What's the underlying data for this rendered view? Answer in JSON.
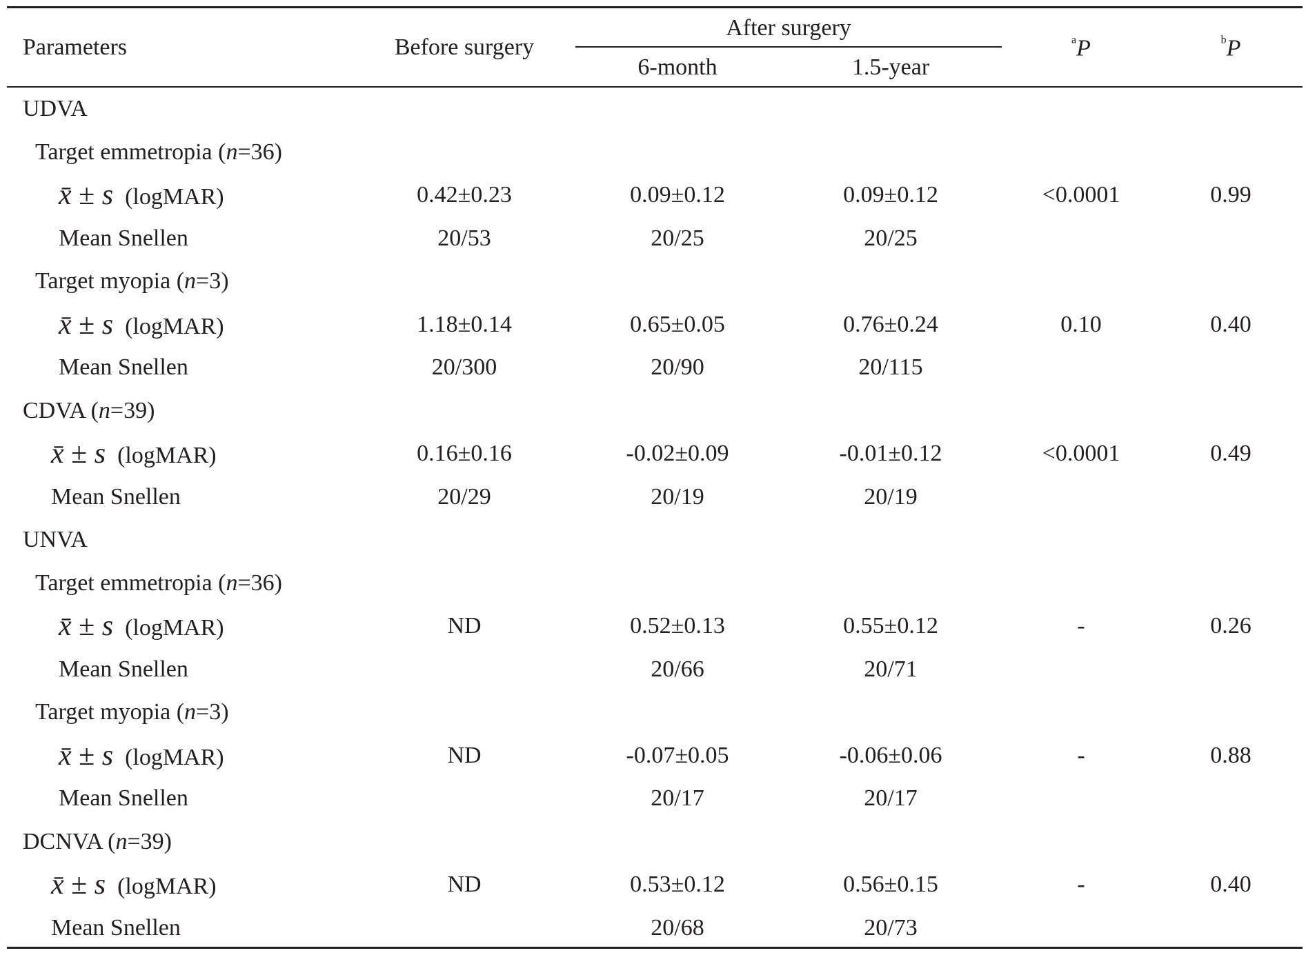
{
  "header": {
    "parameters": "Parameters",
    "before": "Before surgery",
    "after": "After surgery",
    "month6": "6-month",
    "year15": "1.5-year",
    "p_a": {
      "sup": "a",
      "text": "P"
    },
    "p_b": {
      "sup": "b",
      "text": "P"
    }
  },
  "sections": [
    {
      "label": [
        {
          "text": "UDVA"
        }
      ],
      "rows": [
        {
          "label": [
            {
              "text": "Target emmetropia ("
            },
            {
              "text": "n",
              "italic": true
            },
            {
              "text": "=36)"
            }
          ]
        },
        {
          "label": [
            {
              "text": "x̄",
              "italic": true
            },
            {
              "text": " ± "
            },
            {
              "text": "s",
              "italic": true
            },
            {
              "text": "  (logMAR)"
            }
          ],
          "cells": [
            "0.42±0.23",
            "0.09±0.12",
            "0.09±0.12",
            "<0.0001",
            "0.99"
          ]
        },
        {
          "label": [
            {
              "text": "Mean Snellen"
            }
          ],
          "cells": [
            "20/53",
            "20/25",
            "20/25",
            null,
            null
          ]
        },
        {
          "label": [
            {
              "text": "Target myopia ("
            },
            {
              "text": "n",
              "italic": true
            },
            {
              "text": "=3)"
            }
          ]
        },
        {
          "label": [
            {
              "text": "x̄",
              "italic": true
            },
            {
              "text": " ± "
            },
            {
              "text": "s",
              "italic": true
            },
            {
              "text": "  (logMAR)"
            }
          ],
          "cells": [
            "1.18±0.14",
            "0.65±0.05",
            "0.76±0.24",
            "0.10",
            "0.40"
          ]
        },
        {
          "label": [
            {
              "text": "Mean Snellen"
            }
          ],
          "cells": [
            "20/300",
            "20/90",
            "20/115",
            null,
            null
          ]
        }
      ]
    },
    {
      "label": [
        {
          "text": "CDVA ("
        },
        {
          "text": "n",
          "italic": true
        },
        {
          "text": "=39)"
        }
      ],
      "rows": [
        {
          "label": [
            {
              "text": "x̄",
              "italic": true
            },
            {
              "text": " ± "
            },
            {
              "text": "s",
              "italic": true
            },
            {
              "text": "  (logMAR)"
            }
          ],
          "cells": [
            "0.16±0.16",
            "-0.02±0.09",
            "-0.01±0.12",
            "<0.0001",
            "0.49"
          ]
        },
        {
          "label": [
            {
              "text": "Mean Snellen"
            }
          ],
          "cells": [
            "20/29",
            "20/19",
            "20/19",
            null,
            null
          ]
        }
      ]
    },
    {
      "label": [
        {
          "text": "UNVA"
        }
      ],
      "rows": [
        {
          "label": [
            {
              "text": "Target emmetropia ("
            },
            {
              "text": "n",
              "italic": true
            },
            {
              "text": "=36)"
            }
          ]
        },
        {
          "label": [
            {
              "text": "x̄",
              "italic": true
            },
            {
              "text": " ± "
            },
            {
              "text": "s",
              "italic": true
            },
            {
              "text": "  (logMAR)"
            }
          ],
          "cells": [
            "ND",
            "0.52±0.13",
            "0.55±0.12",
            "-",
            "0.26"
          ]
        },
        {
          "label": [
            {
              "text": "Mean Snellen"
            }
          ],
          "cells": [
            null,
            "20/66",
            "20/71",
            null,
            null
          ]
        },
        {
          "label": [
            {
              "text": "Target myopia ("
            },
            {
              "text": "n",
              "italic": true
            },
            {
              "text": "=3)"
            }
          ]
        },
        {
          "label": [
            {
              "text": "x̄",
              "italic": true
            },
            {
              "text": " ± "
            },
            {
              "text": "s",
              "italic": true
            },
            {
              "text": "  (logMAR)"
            }
          ],
          "cells": [
            "ND",
            "-0.07±0.05",
            "-0.06±0.06",
            "-",
            "0.88"
          ]
        },
        {
          "label": [
            {
              "text": "Mean Snellen"
            }
          ],
          "cells": [
            null,
            "20/17",
            "20/17",
            null,
            null
          ]
        }
      ]
    },
    {
      "label": [
        {
          "text": "DCNVA ("
        },
        {
          "text": "n",
          "italic": true
        },
        {
          "text": "=39)"
        }
      ],
      "rows": [
        {
          "label": [
            {
              "text": "x̄",
              "italic": true
            },
            {
              "text": " ± "
            },
            {
              "text": "s",
              "italic": true
            },
            {
              "text": "  (logMAR)"
            }
          ],
          "cells": [
            "ND",
            "0.53±0.12",
            "0.56±0.15",
            "-",
            "0.40"
          ]
        },
        {
          "label": [
            {
              "text": "Mean Snellen"
            }
          ],
          "cells": [
            null,
            "20/68",
            "20/73",
            null,
            null
          ]
        }
      ]
    }
  ]
}
